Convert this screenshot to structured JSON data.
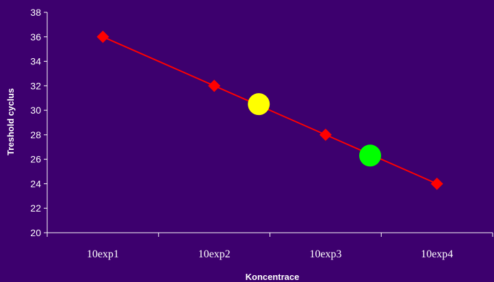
{
  "chart_data": {
    "type": "line",
    "xlabel": "Koncentrace",
    "ylabel": "Treshold cyclus",
    "categories": [
      "10exp1",
      "10exp2",
      "10exp3",
      "10exp4"
    ],
    "ylim": [
      20,
      38
    ],
    "yticks": [
      20,
      22,
      24,
      26,
      28,
      30,
      32,
      34,
      36,
      38
    ],
    "grid": false,
    "series": [
      {
        "values": [
          36,
          32,
          28,
          24
        ],
        "color": "#ff0000",
        "marker": "diamond"
      }
    ],
    "highlight_points": [
      {
        "x": 1.4,
        "y": 30.5,
        "color": "#ffff00"
      },
      {
        "x": 2.4,
        "y": 26.3,
        "color": "#00ff00"
      }
    ],
    "colors": {
      "background": "#3d006e",
      "axis": "#ffffff",
      "text": "#ffffff"
    }
  }
}
